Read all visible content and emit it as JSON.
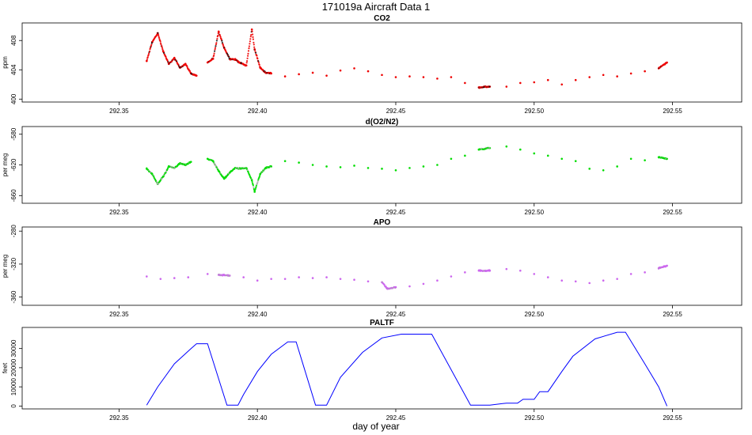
{
  "figure": {
    "title": "171019a   Aircraft Data 1",
    "xlabel": "day of year"
  },
  "chart_data": [
    {
      "type": "scatter",
      "title": "CO2",
      "ylabel": "ppm",
      "xlim": [
        292.315,
        292.575
      ],
      "ylim": [
        399.6,
        410.4
      ],
      "xticks": [
        292.35,
        292.4,
        292.45,
        292.5,
        292.55
      ],
      "xtick_labels": [
        "292.35",
        "292.40",
        "292.45",
        "292.50",
        "292.55"
      ],
      "yticks": [
        400,
        404,
        408
      ],
      "ytick_labels": [
        "400",
        "404",
        "408"
      ],
      "color": "#ee0000",
      "flagged_color": "#000000",
      "series": [
        {
          "name": "CO2",
          "x": [
            292.36,
            292.362,
            292.364,
            292.366,
            292.368,
            292.37,
            292.372,
            292.374,
            292.376,
            292.378,
            292.382,
            292.384,
            292.386,
            292.388,
            292.39,
            292.392,
            292.394,
            292.396,
            292.398,
            292.399,
            292.401,
            292.403,
            292.405,
            292.41,
            292.415,
            292.42,
            292.425,
            292.43,
            292.435,
            292.44,
            292.445,
            292.45,
            292.455,
            292.46,
            292.465,
            292.47,
            292.475,
            292.48,
            292.484,
            292.49,
            292.495,
            292.5,
            292.505,
            292.51,
            292.515,
            292.52,
            292.525,
            292.53,
            292.535,
            292.54,
            292.545,
            292.548
          ],
          "y": [
            405.2,
            407.8,
            409.0,
            406.5,
            404.8,
            405.6,
            404.3,
            404.8,
            403.5,
            403.2,
            405.0,
            405.5,
            409.2,
            407.0,
            405.5,
            405.4,
            404.9,
            404.6,
            409.5,
            406.8,
            404.3,
            403.6,
            403.5,
            403.1,
            403.4,
            403.6,
            403.2,
            403.9,
            404.2,
            403.8,
            403.3,
            403.0,
            403.1,
            403.0,
            402.8,
            403.0,
            402.2,
            401.6,
            401.7,
            401.7,
            402.2,
            402.3,
            402.6,
            402.0,
            402.6,
            403.0,
            403.3,
            403.1,
            403.5,
            403.8,
            404.2,
            405.0
          ]
        }
      ]
    },
    {
      "type": "scatter",
      "title": "d(O2/N2)",
      "ylabel": "per meg",
      "xlim": [
        292.315,
        292.575
      ],
      "ylim": [
        -670,
        -570
      ],
      "xticks": [
        292.35,
        292.4,
        292.45,
        292.5,
        292.55
      ],
      "xtick_labels": [
        "292.35",
        "292.40",
        "292.45",
        "292.50",
        "292.55"
      ],
      "yticks": [
        -580,
        -620,
        -660
      ],
      "ytick_labels": [
        "-580",
        "-620",
        "-660"
      ],
      "color": "#00dd00",
      "flagged_color": "#aaaaaa",
      "series": [
        {
          "name": "d(O2/N2)",
          "x": [
            292.36,
            292.362,
            292.364,
            292.366,
            292.368,
            292.37,
            292.372,
            292.374,
            292.376,
            292.382,
            292.384,
            292.386,
            292.388,
            292.39,
            292.392,
            292.394,
            292.396,
            292.398,
            292.399,
            292.401,
            292.403,
            292.405,
            292.41,
            292.415,
            292.42,
            292.425,
            292.43,
            292.435,
            292.44,
            292.445,
            292.45,
            292.455,
            292.46,
            292.465,
            292.47,
            292.475,
            292.48,
            292.484,
            292.49,
            292.495,
            292.5,
            292.505,
            292.51,
            292.515,
            292.52,
            292.525,
            292.53,
            292.535,
            292.54,
            292.545,
            292.548
          ],
          "y": [
            -625,
            -632,
            -645,
            -635,
            -622,
            -624,
            -618,
            -620,
            -616,
            -612,
            -615,
            -628,
            -638,
            -630,
            -624,
            -625,
            -624,
            -640,
            -655,
            -632,
            -624,
            -622,
            -615,
            -617,
            -620,
            -622,
            -623,
            -621,
            -624,
            -625,
            -627,
            -624,
            -622,
            -620,
            -612,
            -608,
            -600,
            -598,
            -596,
            -600,
            -605,
            -608,
            -612,
            -615,
            -625,
            -627,
            -622,
            -612,
            -614,
            -610,
            -612
          ]
        }
      ]
    },
    {
      "type": "scatter",
      "title": "APO",
      "ylabel": "per meg",
      "xlim": [
        292.315,
        292.575
      ],
      "ylim": [
        -370,
        -275
      ],
      "xticks": [
        292.35,
        292.4,
        292.45,
        292.5,
        292.55
      ],
      "xtick_labels": [
        "292.35",
        "292.40",
        "292.45",
        "292.50",
        "292.55"
      ],
      "yticks": [
        -280,
        -320,
        -360
      ],
      "ytick_labels": [
        "-280",
        "-320",
        "-360"
      ],
      "color": "#cc66ee",
      "flagged_color": "#aaaaaa",
      "series": [
        {
          "name": "APO",
          "x": [
            292.36,
            292.365,
            292.37,
            292.375,
            292.382,
            292.386,
            292.39,
            292.395,
            292.4,
            292.405,
            292.41,
            292.415,
            292.42,
            292.425,
            292.43,
            292.435,
            292.44,
            292.445,
            292.447,
            292.45,
            292.455,
            292.46,
            292.465,
            292.47,
            292.475,
            292.48,
            292.484,
            292.49,
            292.495,
            292.5,
            292.505,
            292.51,
            292.515,
            292.52,
            292.525,
            292.53,
            292.535,
            292.54,
            292.545,
            292.548
          ],
          "y": [
            -335,
            -338,
            -337,
            -336,
            -332,
            -333,
            -334,
            -336,
            -340,
            -338,
            -338,
            -336,
            -337,
            -336,
            -338,
            -339,
            -341,
            -342,
            -350,
            -348,
            -347,
            -344,
            -340,
            -335,
            -330,
            -328,
            -328,
            -326,
            -328,
            -332,
            -336,
            -340,
            -341,
            -343,
            -340,
            -338,
            -332,
            -330,
            -325,
            -322
          ]
        }
      ]
    },
    {
      "type": "line",
      "title": "PALTF",
      "ylabel": "feet",
      "xlim": [
        292.315,
        292.575
      ],
      "ylim": [
        -1500,
        41000
      ],
      "xticks": [
        292.35,
        292.4,
        292.45,
        292.5,
        292.55
      ],
      "xtick_labels": [
        "292.35",
        "292.40",
        "292.45",
        "292.50",
        "292.55"
      ],
      "yticks": [
        0,
        10000,
        20000,
        30000
      ],
      "ytick_labels": [
        "0",
        "10000",
        "20000",
        "30000"
      ],
      "color": "#0000ff",
      "series": [
        {
          "name": "PALTF",
          "x": [
            292.36,
            292.364,
            292.37,
            292.376,
            292.378,
            292.382,
            292.389,
            292.393,
            292.395,
            292.4,
            292.405,
            292.411,
            292.414,
            292.421,
            292.425,
            292.43,
            292.438,
            292.445,
            292.452,
            292.463,
            292.477,
            292.484,
            292.49,
            292.494,
            292.496,
            292.5,
            292.502,
            292.505,
            292.51,
            292.514,
            292.522,
            292.53,
            292.533,
            292.54,
            292.545,
            292.548
          ],
          "y": [
            500,
            10000,
            22000,
            30000,
            32500,
            32500,
            500,
            500,
            6000,
            18000,
            27000,
            33500,
            33500,
            500,
            500,
            15000,
            28000,
            35500,
            37500,
            37500,
            500,
            500,
            1500,
            1500,
            3500,
            3500,
            7500,
            7500,
            18000,
            26000,
            35000,
            38500,
            38500,
            22000,
            10000,
            0
          ]
        }
      ]
    }
  ]
}
